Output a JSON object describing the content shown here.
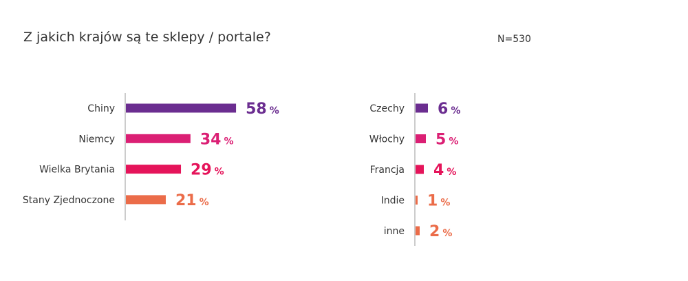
{
  "title": "Z jakich krajów są te sklepy / portale?",
  "sample_size": "N=530",
  "chart_data": [
    {
      "type": "bar",
      "orientation": "horizontal",
      "categories": [
        "Chiny",
        "Niemcy",
        "Wielka Brytania",
        "Stany Zjednoczone"
      ],
      "values": [
        58,
        34,
        29,
        21
      ],
      "value_unit": "%",
      "colors": [
        "#6b2d90",
        "#db1f74",
        "#e5145a",
        "#eb6c49"
      ]
    },
    {
      "type": "bar",
      "orientation": "horizontal",
      "categories": [
        "Czechy",
        "Włochy",
        "Francja",
        "Indie",
        "inne"
      ],
      "values": [
        6,
        5,
        4,
        1,
        2
      ],
      "value_unit": "%",
      "colors": [
        "#6b2d90",
        "#db1f74",
        "#e5145a",
        "#eb6c49",
        "#eb6c49"
      ]
    }
  ]
}
